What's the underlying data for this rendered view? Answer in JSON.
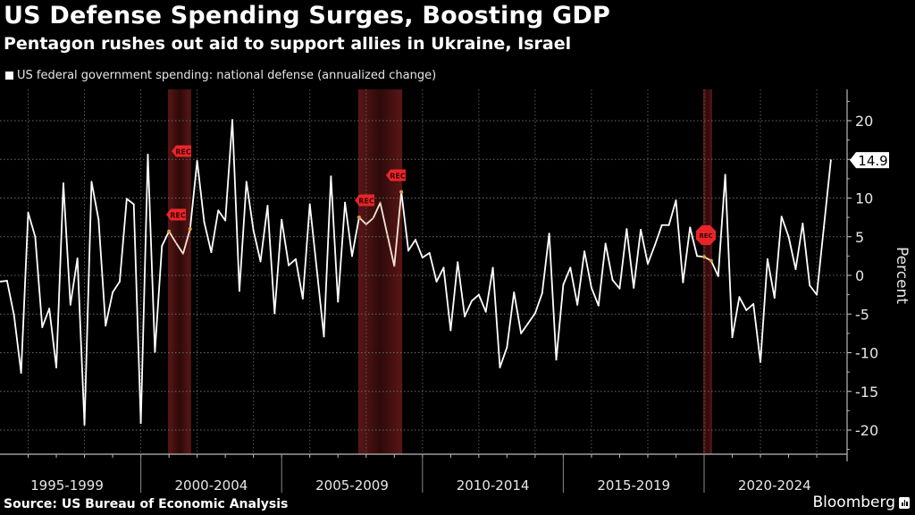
{
  "header": {
    "title": "US Defense Spending Surges, Boosting GDP",
    "subtitle": "Pentagon rushes out aid to support allies in Ukraine, Israel"
  },
  "footer": {
    "source": "Source: US Bureau of Economic Analysis",
    "brand": "Bloomberg"
  },
  "colors": {
    "background": "#000000",
    "line": "#ffffff",
    "recession_band": "#4a1414",
    "recession_marker": "#e8262a",
    "recession_line": "#e0a040"
  },
  "chart_data": {
    "type": "line",
    "title": "US Defense Spending Surges, Boosting GDP",
    "subtitle": "Pentagon rushes out aid to support allies in Ukraine, Israel",
    "xlabel": "",
    "ylabel": "Percent",
    "ylim": [
      -23,
      24
    ],
    "y_ticks": [
      20,
      15,
      10,
      5,
      0,
      -5,
      -10,
      -15,
      -20
    ],
    "y_axis_position": "right",
    "grid": true,
    "legend": {
      "position": "top-left",
      "entries": [
        "US federal government spending: national defense (annualized change)"
      ]
    },
    "x_start_quarter": "1995Q1",
    "x_end_quarter": "2024Q3",
    "x_tick_labels": [
      "1995-1999",
      "2000-2004",
      "2005-2009",
      "2010-2014",
      "2015-2019",
      "2020-2024"
    ],
    "last_value_label": "14.9",
    "recessions": [
      {
        "start": "2001Q1",
        "end": "2001Q4",
        "marker": "REC"
      },
      {
        "start": "2007Q4",
        "end": "2009Q2",
        "marker": "REC"
      },
      {
        "start": "2020Q1",
        "end": "2020Q2",
        "marker": "REC"
      }
    ],
    "recession_marker_text": "REC",
    "series": [
      {
        "name": "US federal government spending: national defense (annualized change)",
        "values": [
          -0.8,
          -0.7,
          -5.2,
          -12.6,
          8.1,
          5.0,
          -6.7,
          -4.3,
          -11.9,
          11.9,
          -3.8,
          2.2,
          -19.3,
          12.1,
          7.2,
          -6.5,
          -2.2,
          -0.8,
          9.9,
          9.2,
          -19.1,
          15.6,
          -9.9,
          3.8,
          5.7,
          4.2,
          2.8,
          6.0,
          14.8,
          6.9,
          3.0,
          8.4,
          7.1,
          20.1,
          -2.0,
          12.1,
          5.8,
          1.8,
          9.0,
          -4.9,
          7.2,
          1.3,
          2.1,
          -3.0,
          9.2,
          0.7,
          -7.9,
          12.8,
          -3.4,
          9.4,
          2.5,
          7.5,
          6.6,
          7.4,
          9.4,
          5.3,
          1.2,
          10.8,
          3.2,
          4.6,
          2.3,
          2.9,
          -0.8,
          1.0,
          -7.1,
          1.7,
          -5.3,
          -3.3,
          -2.5,
          -4.7,
          1.0,
          -11.9,
          -9.3,
          -2.2,
          -7.5,
          -6.2,
          -4.9,
          -2.3,
          5.4,
          -10.9,
          -1.2,
          1.0,
          -3.8,
          3.1,
          -1.6,
          -3.9,
          4.1,
          -0.6,
          -1.7,
          6.0,
          -1.6,
          5.9,
          1.5,
          3.9,
          6.5,
          6.5,
          9.7,
          -0.9,
          6.2,
          2.5,
          2.4,
          1.9,
          -0.1,
          13.0,
          -8.0,
          -2.8,
          -4.5,
          -3.7,
          -11.2,
          2.1,
          -2.9,
          7.6,
          5.0,
          0.8,
          6.7,
          -1.3,
          -2.5,
          6.2,
          14.9
        ]
      }
    ]
  }
}
